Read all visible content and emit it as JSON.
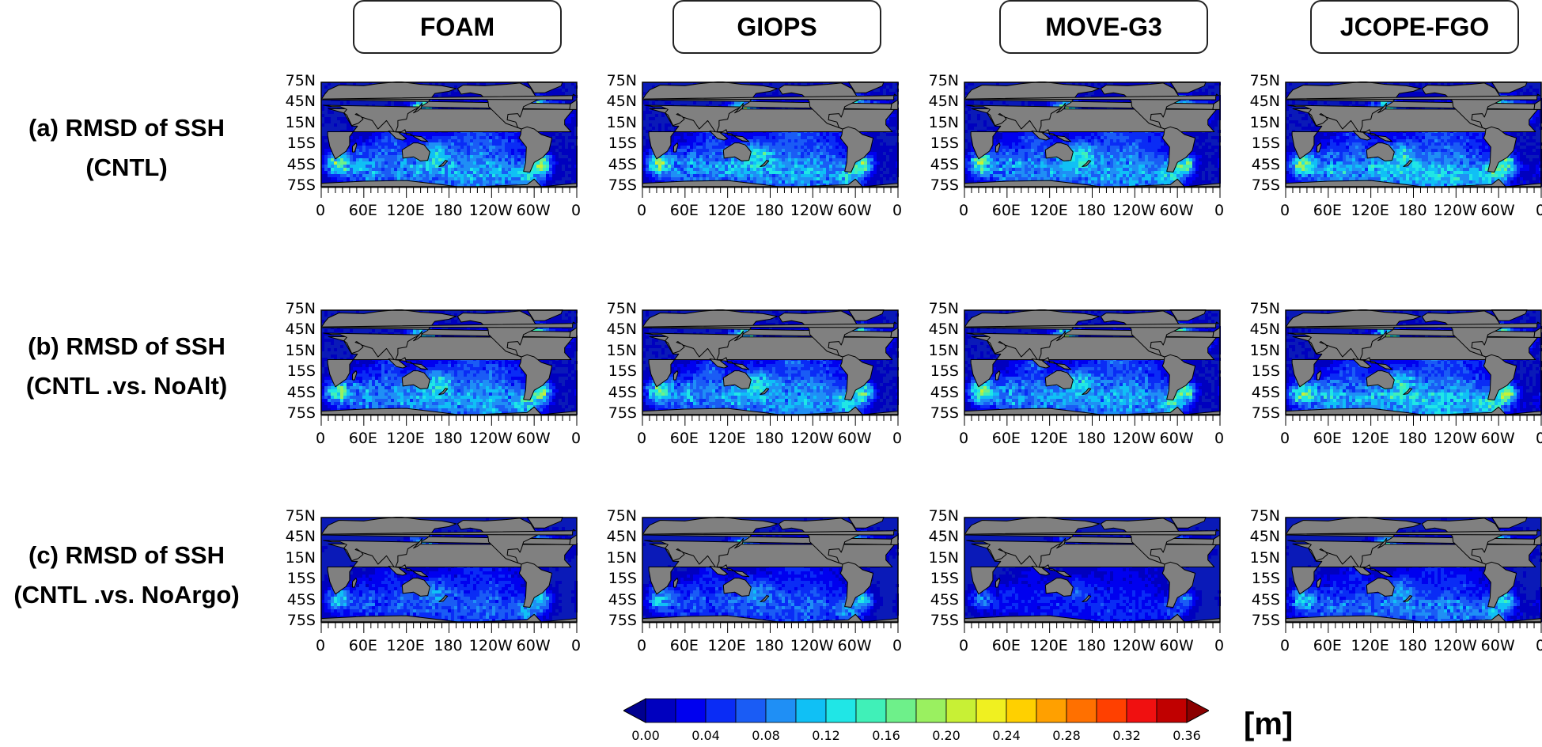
{
  "columns": [
    "FOAM",
    "GIOPS",
    "MOVE-G3",
    "JCOPE-FGO"
  ],
  "rows": [
    {
      "line1": "(a) RMSD of SSH",
      "line2": "(CNTL)"
    },
    {
      "line1": "(b) RMSD of SSH",
      "line2": "(CNTL .vs. NoAlt)"
    },
    {
      "line1": "(c) RMSD of SSH",
      "line2": "(CNTL .vs. NoArgo)"
    }
  ],
  "lat_ticks": [
    "75N",
    "45N",
    "15N",
    "15S",
    "45S",
    "75S"
  ],
  "lon_ticks": [
    "0",
    "60E",
    "120E",
    "180",
    "120W",
    "60W",
    "0"
  ],
  "colorbar": {
    "ticks": [
      "0.00",
      "0.04",
      "0.08",
      "0.12",
      "0.16",
      "0.20",
      "0.24",
      "0.28",
      "0.32",
      "0.36"
    ],
    "unit": "[m]",
    "colors": [
      "#00008f",
      "#0000bf",
      "#0000ef",
      "#0a2cf5",
      "#1a5cf5",
      "#1f8ff5",
      "#10c0f5",
      "#20e6e6",
      "#40f0b8",
      "#6ef08a",
      "#9af060",
      "#c8f035",
      "#f0f020",
      "#ffd000",
      "#ffa000",
      "#ff7000",
      "#ff4000",
      "#f01010",
      "#c00000",
      "#8b0000"
    ]
  },
  "colors": {
    "land": "#808080",
    "ocean_base": "#0a1ab8"
  }
}
